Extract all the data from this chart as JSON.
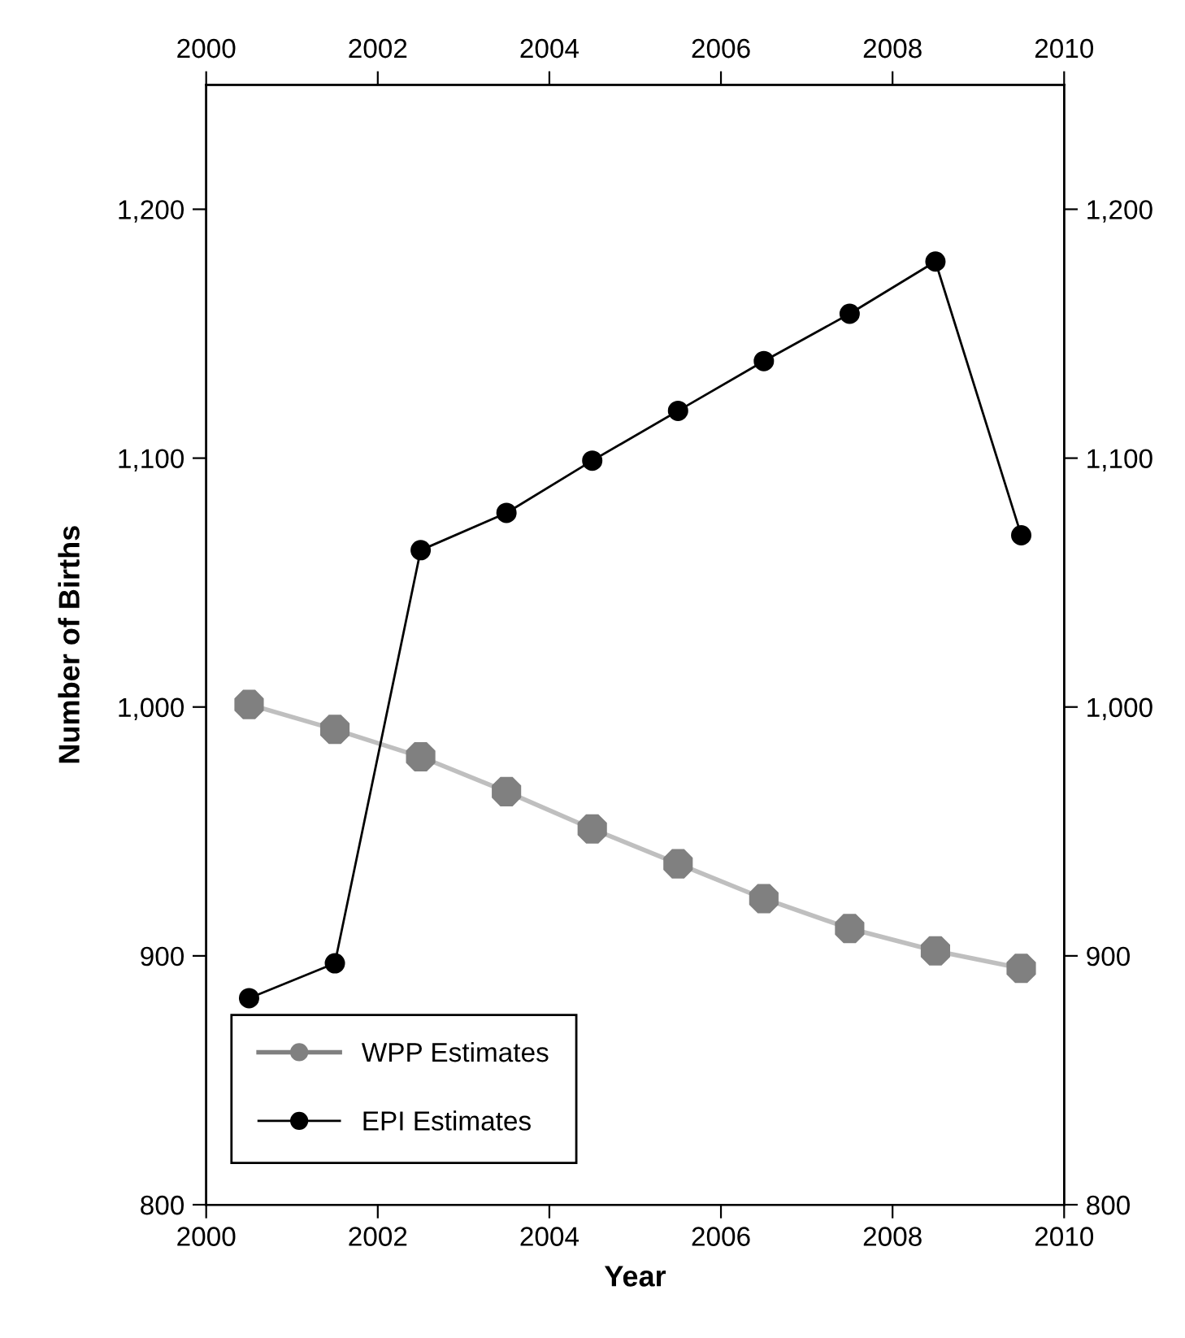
{
  "chart_data": {
    "type": "line",
    "xlabel": "Year",
    "ylabel": "Number of Births",
    "x": [
      2000.5,
      2001.5,
      2002.5,
      2003.5,
      2004.5,
      2005.5,
      2006.5,
      2007.5,
      2008.5,
      2009.5
    ],
    "series": [
      {
        "name": "WPP Estimates",
        "color": "#808080",
        "values": [
          1001,
          991,
          980,
          966,
          951,
          937,
          923,
          911,
          902,
          895
        ]
      },
      {
        "name": "EPI Estimates",
        "color": "#000000",
        "values": [
          883,
          897,
          1063,
          1078,
          1099,
          1119,
          1139,
          1158,
          1179,
          1069
        ]
      }
    ],
    "xlim": [
      2000,
      2010
    ],
    "xticks": [
      2000,
      2002,
      2004,
      2006,
      2008,
      2010
    ],
    "x2lim": [
      2000,
      2010
    ],
    "x2ticks": [
      2000,
      2002,
      2004,
      2006,
      2008,
      2010
    ],
    "ylim": [
      800,
      1250
    ],
    "yticks": [
      800,
      900,
      {
        "value": 1000,
        "label": "1,000"
      },
      {
        "value": 1100,
        "label": "1,100"
      },
      {
        "value": 1200,
        "label": "1,200"
      }
    ],
    "y2lim": [
      800,
      1250
    ],
    "y2ticks": [
      800,
      900,
      {
        "value": 1000,
        "label": "1,000"
      },
      {
        "value": 1100,
        "label": "1,100"
      },
      {
        "value": 1200,
        "label": "1,200"
      }
    ],
    "grid": false,
    "legend": "bottom left",
    "marker": "circle",
    "line_style": "solid"
  }
}
